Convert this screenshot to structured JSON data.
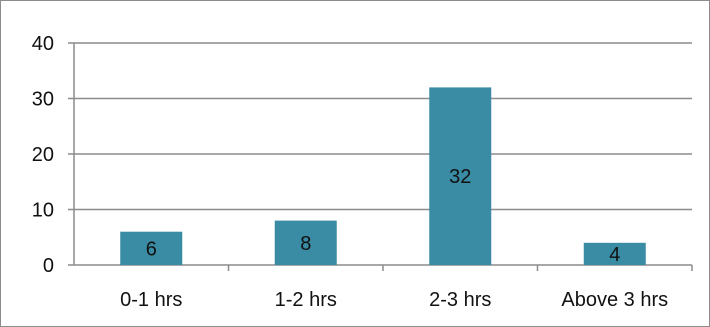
{
  "chart_data": {
    "type": "bar",
    "categories": [
      "0-1 hrs",
      "1-2 hrs",
      "2-3 hrs",
      "Above 3 hrs"
    ],
    "values": [
      6,
      8,
      32,
      4
    ],
    "data_labels": [
      "6",
      "8",
      "32",
      "4"
    ],
    "y_ticks": [
      "0",
      "10",
      "20",
      "30",
      "40"
    ],
    "ylim": [
      0,
      40
    ],
    "title": "",
    "xlabel": "",
    "ylabel": "",
    "grid": true,
    "legend": "none",
    "colors": {
      "bar": "#3a8ba4",
      "grid": "#8c8c8c",
      "axis": "#8c8c8c"
    }
  }
}
